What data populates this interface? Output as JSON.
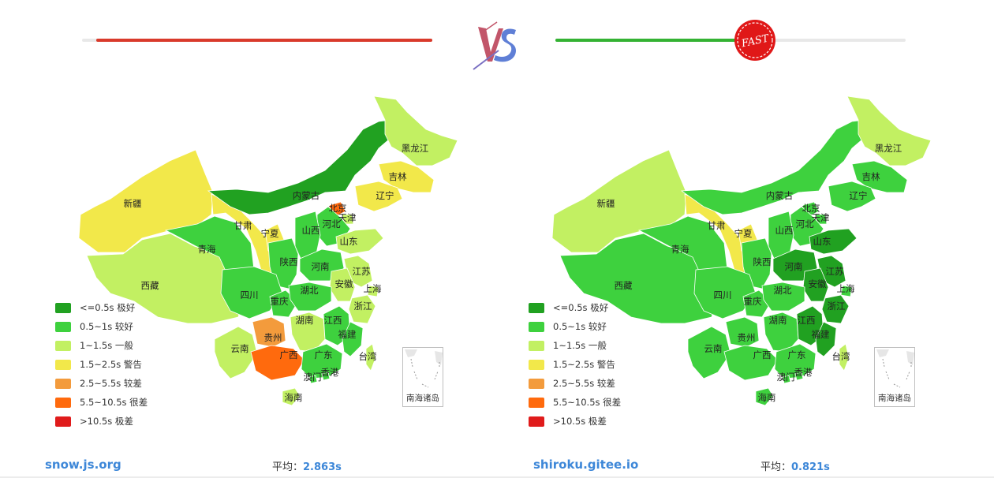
{
  "legend": [
    {
      "key": "l1",
      "label": "<=0.5s 极好",
      "color": "#21a121"
    },
    {
      "key": "l2",
      "label": "0.5~1s 较好",
      "color": "#3ed13e"
    },
    {
      "key": "l3",
      "label": "1~1.5s 一般",
      "color": "#c2f062"
    },
    {
      "key": "l4",
      "label": "1.5~2.5s 警告",
      "color": "#f2e84a"
    },
    {
      "key": "l5",
      "label": "2.5~5.5s 较差",
      "color": "#f39b3c"
    },
    {
      "key": "l6",
      "label": "5.5~10.5s 很差",
      "color": "#ff6a0d"
    },
    {
      "key": "l7",
      "label": ">10.5s 极差",
      "color": "#e01b1b"
    }
  ],
  "inset_label": "南海诸岛",
  "avg_label": "平均：",
  "vs_text": "VS",
  "fast_text": "FAST",
  "sides": [
    {
      "site": "snow.js.org",
      "avg": "2.863s",
      "progress": 0.96,
      "bar_color": "#d93a2b",
      "regions": {
        "新疆": "l4",
        "西藏": "l3",
        "青海": "l2",
        "甘肃": "l4",
        "宁夏": "l4",
        "内蒙古": "l1",
        "黑龙江": "l3",
        "吉林": "l4",
        "辽宁": "l4",
        "北京": "l6",
        "天津": "l3",
        "河北": "l2",
        "山西": "l2",
        "山东": "l3",
        "陕西": "l2",
        "河南": "l2",
        "江苏": "l3",
        "安徽": "l3",
        "上海": "l3",
        "四川": "l2",
        "重庆": "l2",
        "湖北": "l2",
        "浙江": "l3",
        "贵州": "l5",
        "湖南": "l3",
        "江西": "l2",
        "福建": "l2",
        "云南": "l3",
        "广西": "l6",
        "广东": "l2",
        "澳门": "l2",
        "香港": "l2",
        "台湾": "l3",
        "海南": "l3"
      }
    },
    {
      "site": "shiroku.gitee.io",
      "avg": "0.821s",
      "progress": 0.52,
      "bar_color": "#34b233",
      "regions": {
        "新疆": "l3",
        "西藏": "l2",
        "青海": "l2",
        "甘肃": "l4",
        "宁夏": "l4",
        "内蒙古": "l2",
        "黑龙江": "l3",
        "吉林": "l2",
        "辽宁": "l2",
        "北京": "l2",
        "天津": "l2",
        "河北": "l2",
        "山西": "l2",
        "山东": "l1",
        "陕西": "l2",
        "河南": "l1",
        "江苏": "l1",
        "安徽": "l1",
        "上海": "l2",
        "四川": "l2",
        "重庆": "l2",
        "湖北": "l2",
        "浙江": "l1",
        "贵州": "l2",
        "湖南": "l2",
        "江西": "l1",
        "福建": "l1",
        "云南": "l2",
        "广西": "l2",
        "广东": "l2",
        "澳门": "l2",
        "香港": "l2",
        "台湾": "l3",
        "海南": "l2"
      }
    }
  ]
}
